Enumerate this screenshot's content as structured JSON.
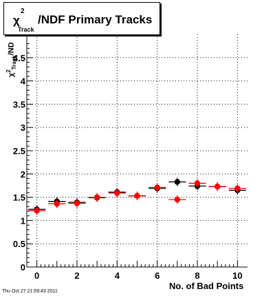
{
  "chart_data": {
    "type": "scatter",
    "title": {
      "symbol": "χ",
      "superscript": "2",
      "subscript": "Track",
      "text": "/NDF Primary Tracks"
    },
    "ylabel": {
      "symbol": "χ",
      "superscript": "2",
      "subscript": "Track",
      "text": "/ND"
    },
    "xlabel": "No. of Bad Points",
    "xlim": [
      -0.5,
      10.5
    ],
    "ylim": [
      0,
      5
    ],
    "x_ticks": [
      "0",
      "2",
      "4",
      "6",
      "8",
      "10"
    ],
    "y_ticks": [
      "0",
      "0.5",
      "1",
      "1.5",
      "2",
      "2.5",
      "3",
      "3.5",
      "4",
      "4.5"
    ],
    "grid": true,
    "series": [
      {
        "color": "#000000",
        "x": [
          0,
          1,
          2,
          3,
          4,
          5,
          6,
          7,
          8,
          9,
          10
        ],
        "y": [
          1.24,
          1.41,
          1.39,
          1.49,
          1.61,
          1.53,
          1.69,
          1.83,
          1.74,
          1.73,
          1.65
        ]
      },
      {
        "color": "#ff0000",
        "x": [
          0,
          1,
          2,
          3,
          4,
          5,
          6,
          7,
          8,
          9,
          10
        ],
        "y": [
          1.21,
          1.36,
          1.37,
          1.5,
          1.59,
          1.53,
          1.71,
          1.45,
          1.8,
          1.73,
          1.69
        ]
      }
    ]
  },
  "footer": "Thu Oct 27 21:59:43 2011"
}
